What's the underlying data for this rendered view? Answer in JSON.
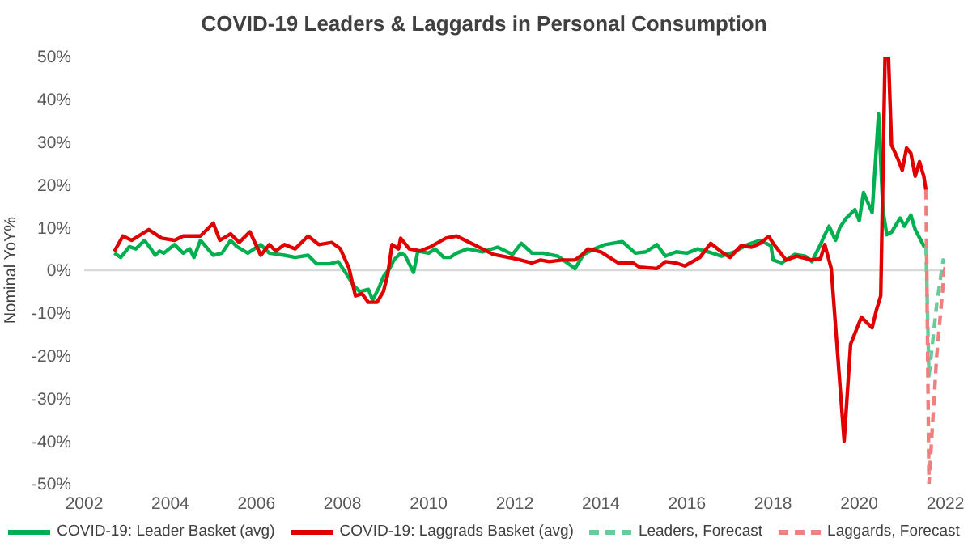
{
  "chart_data": {
    "type": "line",
    "title": "COVID-19 Leaders & Laggards in Personal Consumption",
    "ylabel": "Nominal YoY%",
    "xlim": [
      2002,
      2022
    ],
    "xticks": [
      2002,
      2004,
      2006,
      2008,
      2010,
      2012,
      2014,
      2016,
      2018,
      2020,
      2022
    ],
    "ylim": [
      -50,
      50
    ],
    "yticks": [
      {
        "value": -50,
        "label": "-50%"
      },
      {
        "value": -40,
        "label": "-40%"
      },
      {
        "value": -30,
        "label": "-30%"
      },
      {
        "value": -20,
        "label": "-20%"
      },
      {
        "value": -10,
        "label": "-10%"
      },
      {
        "value": 0,
        "label": "0%"
      },
      {
        "value": 10,
        "label": "10%"
      },
      {
        "value": 20,
        "label": "20%"
      },
      {
        "value": 30,
        "label": "30%"
      },
      {
        "value": 40,
        "label": "40%"
      },
      {
        "value": 50,
        "label": "50%"
      }
    ],
    "legend": "bottom",
    "marker": "none",
    "ref_lines": [
      {
        "axis": "y",
        "value": 0,
        "color": "#d9d9d9"
      }
    ],
    "series": [
      {
        "name": "COVID-19: Leader Basket (avg)",
        "color": "#00b050",
        "line_style": "solid",
        "x": [
          2002.7,
          2002.85,
          2003.05,
          2003.2,
          2003.4,
          2003.55,
          2003.65,
          2003.75,
          2003.85,
          2004.1,
          2004.3,
          2004.45,
          2004.55,
          2004.7,
          2005.0,
          2005.2,
          2005.4,
          2005.55,
          2005.8,
          2006.1,
          2006.3,
          2006.65,
          2006.9,
          2007.2,
          2007.4,
          2007.7,
          2007.9,
          2008.1,
          2008.25,
          2008.4,
          2008.6,
          2008.7,
          2008.85,
          2008.95,
          2009.1,
          2009.2,
          2009.35,
          2009.45,
          2009.65,
          2009.75,
          2010.0,
          2010.15,
          2010.35,
          2010.5,
          2010.65,
          2010.9,
          2011.25,
          2011.6,
          2011.95,
          2012.15,
          2012.4,
          2012.65,
          2013.0,
          2013.4,
          2013.6,
          2013.85,
          2014.1,
          2014.5,
          2014.8,
          2015.05,
          2015.3,
          2015.5,
          2015.75,
          2016.0,
          2016.25,
          2016.5,
          2016.8,
          2017.1,
          2017.4,
          2017.7,
          2017.95,
          2018.0,
          2018.2,
          2018.5,
          2018.75,
          2018.9,
          2019.1,
          2019.2,
          2019.3,
          2019.45,
          2019.55,
          2019.7,
          2019.9,
          2020.0,
          2020.1,
          2020.3,
          2020.45,
          2020.55,
          2020.64,
          2020.75,
          2020.95,
          2021.05,
          2021.2,
          2021.3,
          2021.5,
          2021.55
        ],
        "values": [
          4,
          3,
          5.5,
          5,
          7,
          5,
          3.5,
          4.5,
          4,
          6,
          4,
          5,
          3,
          7,
          3.5,
          4,
          7,
          5.5,
          4,
          6,
          4,
          3.5,
          3,
          3.5,
          1.5,
          1.5,
          2,
          -1,
          -3.5,
          -5,
          -4.5,
          -7,
          -4,
          -1.5,
          0.5,
          2.5,
          4,
          3.5,
          -0.5,
          4.5,
          4,
          5,
          3,
          3,
          4,
          5,
          4.3,
          5.4,
          3.7,
          6.3,
          4,
          4,
          3.3,
          0.4,
          3.7,
          5,
          6,
          6.7,
          4,
          4.3,
          6,
          3.3,
          4.3,
          4,
          5,
          4.3,
          3.3,
          4.3,
          6,
          7,
          5.7,
          2.4,
          1.7,
          3.7,
          3.3,
          2,
          6,
          8.3,
          10.3,
          7,
          10,
          12.2,
          14.2,
          11.6,
          18.2,
          13.5,
          36.6,
          14.2,
          8.3,
          8.9,
          12.2,
          10.3,
          12.9,
          9.5,
          5.7,
          5.7
        ]
      },
      {
        "name": "COVID-19: Laggrads Basket (avg)",
        "color": "#e00000",
        "line_style": "solid",
        "x": [
          2002.7,
          2002.9,
          2003.1,
          2003.5,
          2003.8,
          2004.1,
          2004.3,
          2004.7,
          2005.0,
          2005.15,
          2005.4,
          2005.6,
          2005.85,
          2006.1,
          2006.3,
          2006.45,
          2006.65,
          2006.9,
          2007.2,
          2007.45,
          2007.75,
          2007.95,
          2008.15,
          2008.3,
          2008.45,
          2008.6,
          2008.8,
          2008.95,
          2009.05,
          2009.15,
          2009.3,
          2009.35,
          2009.55,
          2009.8,
          2010.05,
          2010.4,
          2010.65,
          2010.95,
          2011.25,
          2011.5,
          2011.85,
          2012.1,
          2012.4,
          2012.6,
          2012.8,
          2013.1,
          2013.4,
          2013.55,
          2013.7,
          2014.0,
          2014.4,
          2014.75,
          2014.9,
          2015.3,
          2015.5,
          2015.75,
          2015.95,
          2016.3,
          2016.55,
          2016.8,
          2017.0,
          2017.25,
          2017.5,
          2017.7,
          2017.9,
          2018.0,
          2018.3,
          2018.55,
          2018.9,
          2019.1,
          2019.2,
          2019.35,
          2019.65,
          2019.8,
          2020.05,
          2020.3,
          2020.4,
          2020.5,
          2020.6,
          2020.68,
          2020.75,
          2020.9,
          2021.0,
          2021.1,
          2021.2,
          2021.3,
          2021.4,
          2021.5,
          2021.55
        ],
        "values": [
          4.4,
          8,
          7,
          9.5,
          7.5,
          7,
          8,
          8,
          11,
          7,
          8.5,
          6.5,
          9,
          3.5,
          6,
          4.5,
          6,
          5,
          8,
          6,
          6.5,
          5,
          0.5,
          -6,
          -5.5,
          -7.5,
          -7.5,
          -5,
          -1,
          6,
          5,
          7.5,
          5,
          4.5,
          5.5,
          7.5,
          8,
          6.5,
          5,
          3.7,
          3,
          2.5,
          1.7,
          2.4,
          2,
          2.4,
          2.4,
          3.5,
          5,
          4.3,
          1.7,
          1.7,
          0.7,
          0.4,
          2,
          1.7,
          1,
          3,
          6.3,
          4.3,
          3,
          5.7,
          5.4,
          6.3,
          7.9,
          6.3,
          2.4,
          3.3,
          2.4,
          2.7,
          6,
          0.4,
          -40,
          -17.3,
          -11,
          -13.5,
          -9.3,
          -6,
          50,
          50,
          29.3,
          26,
          23.4,
          28.6,
          27.4,
          22,
          25.4,
          22,
          18.8
        ]
      },
      {
        "name": "Leaders, Forecast",
        "color": "#66cc99",
        "line_style": "dashed",
        "x": [
          2021.55,
          2021.62,
          2021.8,
          2021.95,
          2022.0
        ],
        "values": [
          5.7,
          -24.7,
          -8,
          2.4,
          1.7
        ]
      },
      {
        "name": "Laggards, Forecast",
        "color": "#f08080",
        "line_style": "dashed",
        "x": [
          2021.55,
          2021.62,
          2021.8,
          2021.97,
          2022.0
        ],
        "values": [
          18.8,
          -50,
          -20,
          -1,
          1
        ]
      }
    ]
  }
}
